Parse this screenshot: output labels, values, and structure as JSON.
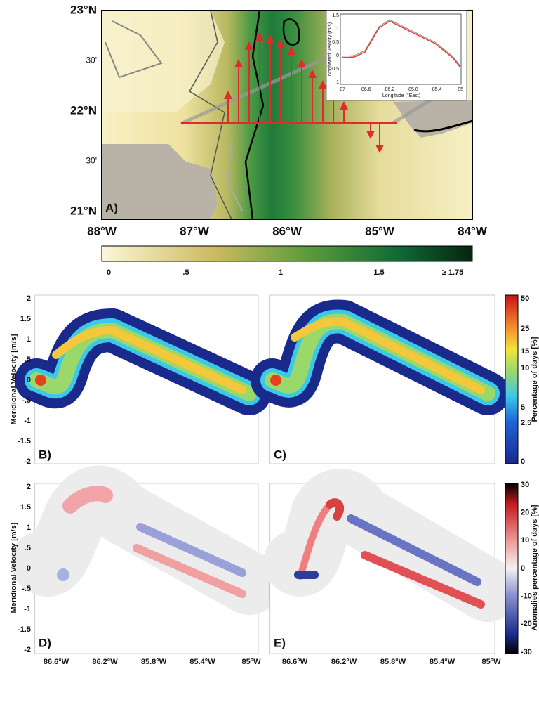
{
  "panel_a": {
    "label": "A)",
    "lat_ticks": [
      "23°N",
      "30'",
      "22°N",
      "30'",
      "21°N"
    ],
    "lon_ticks": [
      "88°W",
      "87°W",
      "86°W",
      "85°W",
      "84°W"
    ],
    "colorbar_ticks": [
      "0",
      ".5",
      "1",
      "1.5",
      "≥ 1.75"
    ],
    "inset": {
      "y_label": "Northward Velocity (m/s)",
      "x_label": "Longitude (°East)",
      "x_ticks": [
        "-87",
        "-86.6",
        "-86.2",
        "-85.8",
        "-85.4",
        "-85"
      ],
      "y_ticks": [
        "1.5",
        "1",
        "0.5",
        "0",
        "-0.5",
        "-1"
      ]
    }
  },
  "panels": [
    {
      "label": "B)"
    },
    {
      "label": "C)"
    },
    {
      "label": "D)"
    },
    {
      "label": "E)"
    }
  ],
  "y_axis": {
    "label": "Meridional Velocity [m/s]",
    "ticks": [
      "2",
      "1.5",
      "1",
      ".5",
      "0",
      "-.5",
      "-1",
      "-1.5",
      "-2"
    ]
  },
  "x_ticks": [
    "86.6°W",
    "86.2°W",
    "85.8°W",
    "85.4°W",
    "85°W"
  ],
  "colorbar_percent": {
    "label": "Percentage of days [%]",
    "ticks": [
      "50",
      "25",
      "15",
      "10",
      "5",
      "2.5",
      "0"
    ]
  },
  "colorbar_anomaly": {
    "label": "Anomalies percentage of days [%]",
    "ticks": [
      "30",
      "20",
      "10",
      "0",
      "-10",
      "-20",
      "-30"
    ]
  }
}
